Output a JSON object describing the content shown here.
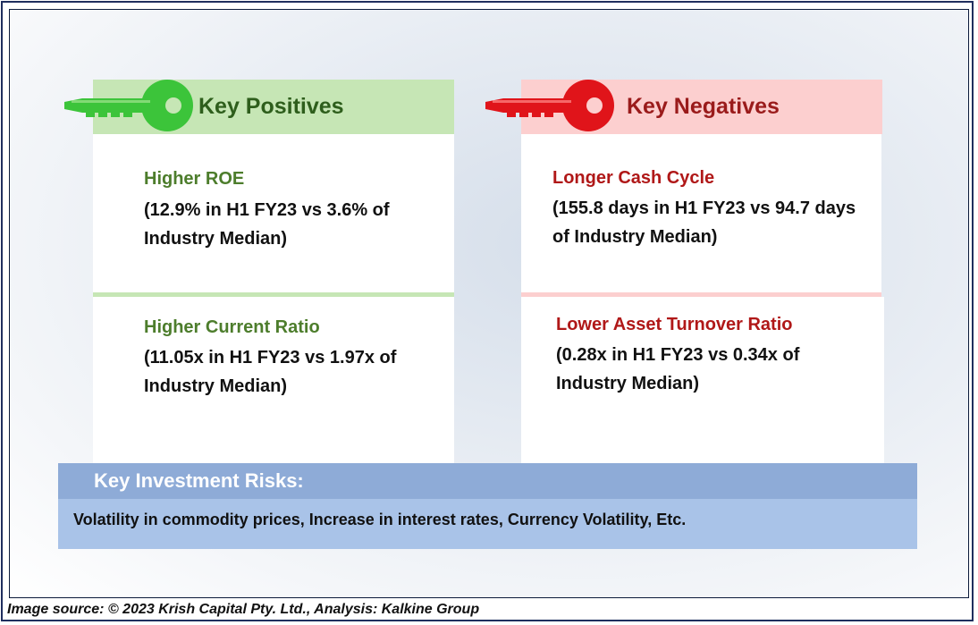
{
  "positives": {
    "heading": "Key Positives",
    "accent": "#3cc43a",
    "items": [
      {
        "title": "Higher ROE",
        "desc": "(12.9% in H1 FY23 vs 3.6% of Industry Median)"
      },
      {
        "title": "Higher Current Ratio",
        "desc": "(11.05x in H1 FY23 vs 1.97x of Industry Median)"
      }
    ]
  },
  "negatives": {
    "heading": "Key Negatives",
    "accent": "#e0141a",
    "items": [
      {
        "title": "Longer Cash Cycle",
        "desc": "(155.8 days in H1 FY23 vs 94.7 days of Industry Median)"
      },
      {
        "title": "Lower Asset Turnover Ratio",
        "desc": "(0.28x in H1 FY23 vs 0.34x of Industry Median)"
      }
    ]
  },
  "risks": {
    "heading": "Key Investment Risks:",
    "text": "Volatility in commodity prices, Increase in interest rates, Currency Volatility, Etc."
  },
  "source": "Image source: © 2023 Krish Capital Pty. Ltd., Analysis: Kalkine Group",
  "icons": {
    "positives": "green-key-icon",
    "negatives": "red-key-icon"
  }
}
